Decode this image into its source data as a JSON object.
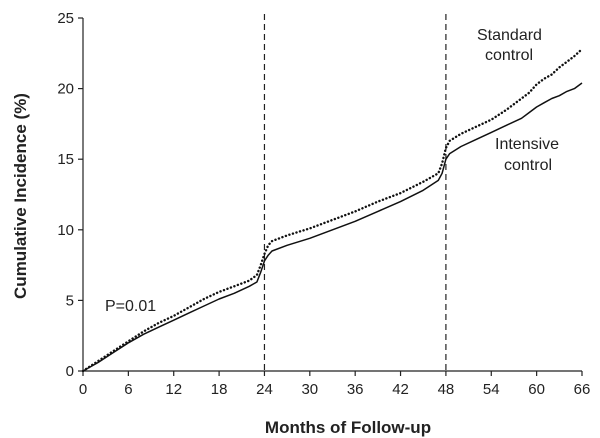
{
  "chart_data": {
    "type": "line",
    "xlabel": "Months of Follow-up",
    "ylabel": "Cumulative Incidence (%)",
    "xlim": [
      0,
      66
    ],
    "ylim": [
      0,
      25
    ],
    "x_ticks": [
      "0",
      "6",
      "12",
      "18",
      "24",
      "30",
      "36",
      "42",
      "48",
      "54",
      "60",
      "66"
    ],
    "y_ticks": [
      "0",
      "5",
      "10",
      "15",
      "20",
      "25"
    ],
    "grid": false,
    "legend": "none",
    "reference_lines_x": [
      24,
      48
    ],
    "annotations": {
      "p_value": "P=0.01",
      "standard_line1": "Standard",
      "standard_line2": "control",
      "intensive_line1": "Intensive",
      "intensive_line2": "control"
    },
    "series": [
      {
        "style": "dotted",
        "x": [
          0,
          2,
          4,
          6,
          8,
          10,
          12,
          14,
          16,
          18,
          20,
          22,
          23,
          23.5,
          24,
          24.5,
          25,
          27,
          30,
          33,
          36,
          39,
          42,
          45,
          47,
          47.5,
          48,
          48.5,
          50,
          52,
          54,
          56,
          58,
          59,
          60,
          61,
          62,
          63,
          64,
          65,
          66
        ],
        "y": [
          0,
          0.7,
          1.4,
          2.1,
          2.8,
          3.4,
          3.9,
          4.5,
          5.1,
          5.6,
          6.0,
          6.4,
          6.8,
          7.5,
          8.3,
          8.9,
          9.2,
          9.6,
          10.1,
          10.7,
          11.3,
          12.0,
          12.6,
          13.4,
          14.0,
          14.7,
          15.8,
          16.3,
          16.8,
          17.3,
          17.8,
          18.5,
          19.3,
          19.7,
          20.3,
          20.7,
          21.0,
          21.5,
          21.9,
          22.3,
          22.8
        ]
      },
      {
        "style": "solid",
        "x": [
          0,
          2,
          4,
          6,
          8,
          10,
          12,
          14,
          16,
          18,
          20,
          22,
          23,
          23.5,
          24,
          24.5,
          25,
          27,
          30,
          33,
          36,
          39,
          42,
          45,
          47,
          47.5,
          48,
          48.5,
          50,
          52,
          54,
          56,
          58,
          59,
          60,
          61,
          62,
          63,
          64,
          65,
          66
        ],
        "y": [
          0,
          0.6,
          1.3,
          2.0,
          2.6,
          3.1,
          3.6,
          4.1,
          4.6,
          5.1,
          5.5,
          6.0,
          6.3,
          7.0,
          7.8,
          8.2,
          8.5,
          8.9,
          9.4,
          10.0,
          10.6,
          11.3,
          12.0,
          12.8,
          13.5,
          14.0,
          15.0,
          15.4,
          15.9,
          16.4,
          16.9,
          17.4,
          17.9,
          18.3,
          18.7,
          19.0,
          19.3,
          19.5,
          19.8,
          20.0,
          20.4
        ]
      }
    ]
  }
}
